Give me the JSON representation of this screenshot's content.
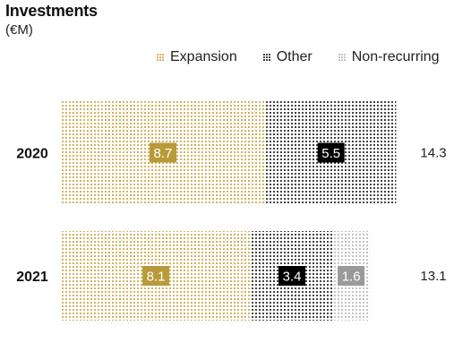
{
  "chart_data": {
    "type": "bar",
    "orientation": "horizontal",
    "stacked": true,
    "title": "Investments",
    "subtitle": "(€M)",
    "categories": [
      "2020",
      "2021"
    ],
    "series": [
      {
        "name": "Expansion",
        "values": [
          8.7,
          8.1
        ],
        "color": "#c3a23c",
        "label_bg": "#b89a3a",
        "label_color": "#ffffff"
      },
      {
        "name": "Other",
        "values": [
          5.5,
          3.4
        ],
        "color": "#111111",
        "label_bg": "#000000",
        "label_color": "#ffffff"
      },
      {
        "name": "Non-recurring",
        "values": [
          0,
          1.6
        ],
        "color": "#b5b5b5",
        "label_bg": "#9a9a9a",
        "label_color": "#ffffff"
      }
    ],
    "totals": [
      "14.3",
      "13.1"
    ],
    "value_labels": [
      [
        "8.7",
        "5.5",
        ""
      ],
      [
        "8.1",
        "3.4",
        "1.6"
      ]
    ],
    "legend_position": "top-right",
    "grid": false,
    "xlim": [
      0,
      14.3
    ]
  }
}
